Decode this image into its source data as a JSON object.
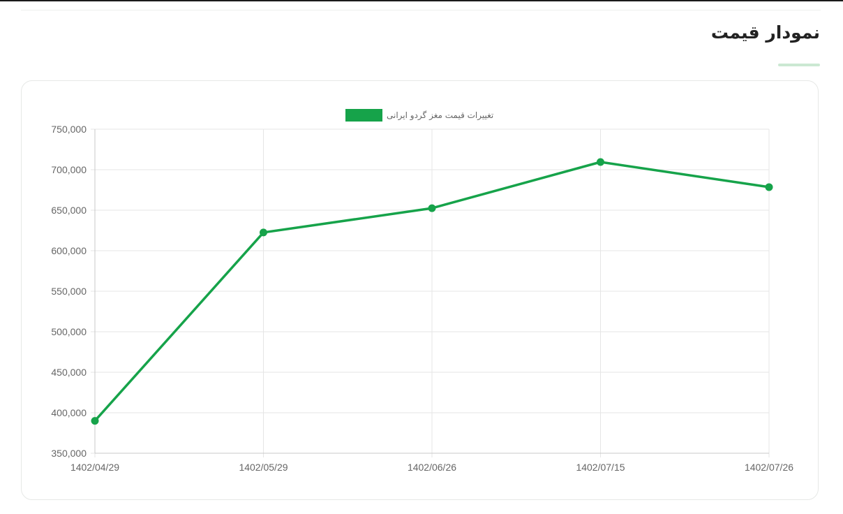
{
  "section": {
    "title": "نمودار قیمت"
  },
  "chart_data": {
    "type": "line",
    "x": [
      "1402/04/29",
      "1402/05/29",
      "1402/06/26",
      "1402/07/15",
      "1402/07/26"
    ],
    "series": [
      {
        "name": "تغییرات قیمت مغز گردو ایرانی",
        "values": [
          390000,
          622500,
          652500,
          709500,
          678500
        ],
        "color": "#16a34a"
      }
    ],
    "ylim": [
      350000,
      750000
    ],
    "yticks": [
      "350,000",
      "400,000",
      "450,000",
      "500,000",
      "550,000",
      "600,000",
      "650,000",
      "700,000",
      "750,000"
    ],
    "legend": "top-center",
    "grid": true
  }
}
